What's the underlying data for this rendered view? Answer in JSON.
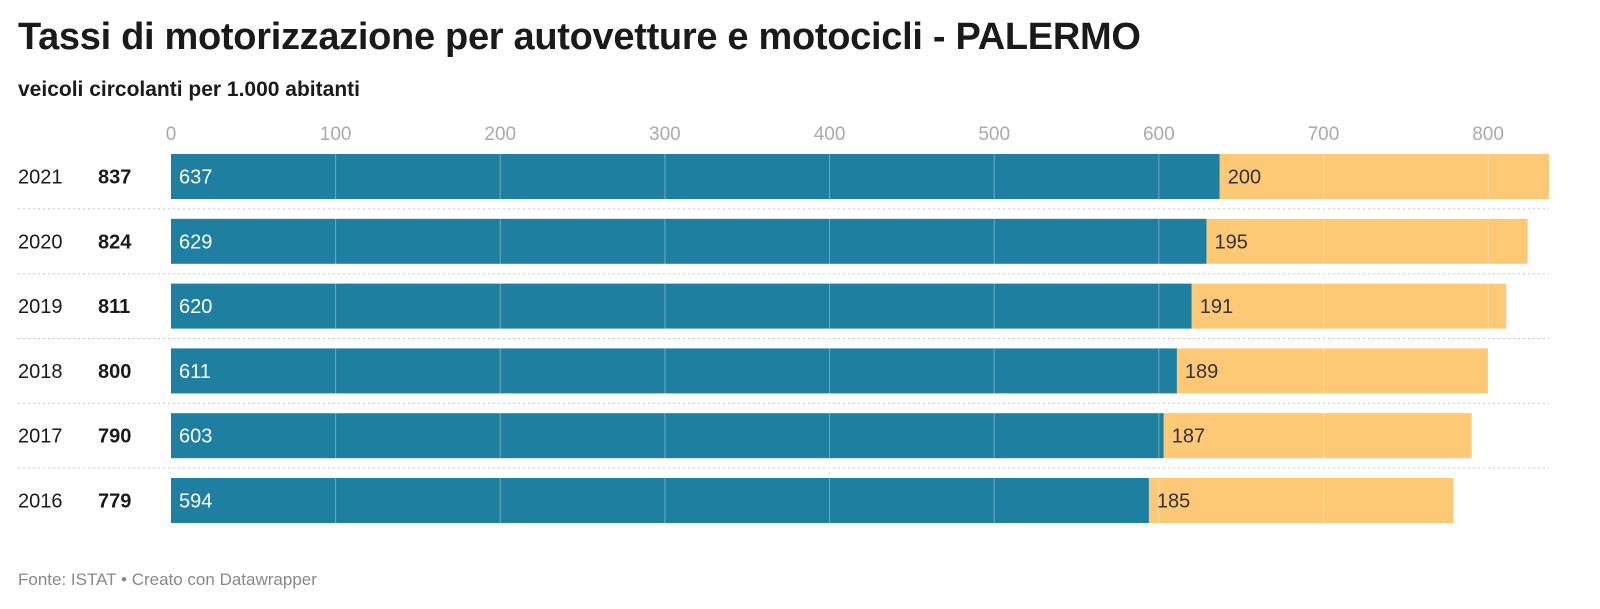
{
  "title": "Tassi di motorizzazione per autovetture e motocicli - PALERMO",
  "subtitle": "veicoli circolanti per 1.000 abitanti",
  "footer": {
    "source": "Fonte: ISTAT",
    "separator": "•",
    "credit": "Creato con Datawrapper"
  },
  "colors": {
    "autovetture": "#1f7fa0",
    "motocicli": "#fdc977",
    "axis_text": "#aaaaaa",
    "row_divider": "#c8c8c8"
  },
  "chart_data": {
    "type": "bar",
    "orientation": "horizontal",
    "stacked": true,
    "categories": [
      "2021",
      "2020",
      "2019",
      "2018",
      "2017",
      "2016"
    ],
    "totals": [
      837,
      824,
      811,
      800,
      790,
      779
    ],
    "series": [
      {
        "values": [
          637,
          629,
          620,
          611,
          603,
          594
        ]
      },
      {
        "values": [
          200,
          195,
          191,
          189,
          187,
          185
        ]
      }
    ],
    "xlim": [
      0,
      837
    ],
    "xticks": [
      0,
      100,
      200,
      300,
      400,
      500,
      600,
      700,
      800
    ],
    "grid": true,
    "xaxis_position": "top",
    "legend": "none"
  }
}
